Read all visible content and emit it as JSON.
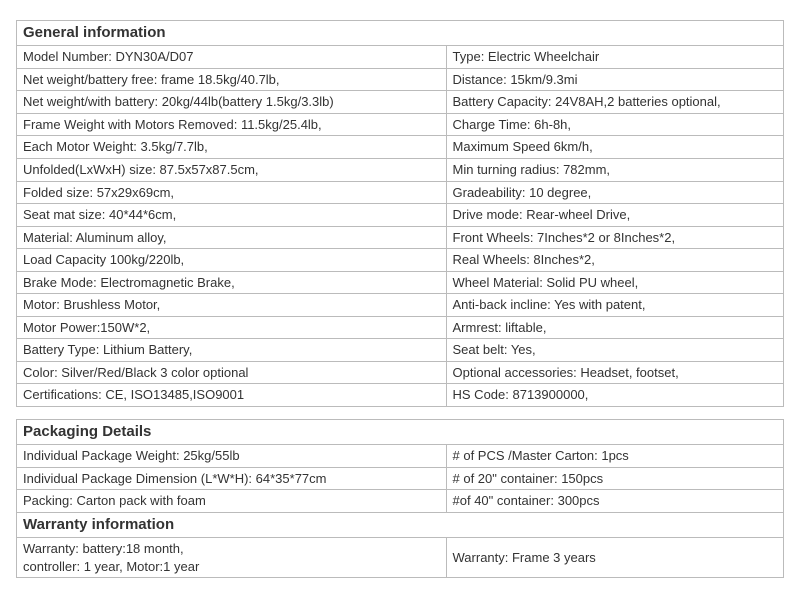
{
  "general": {
    "header": "General information",
    "rows": [
      [
        "Model Number: DYN30A/D07",
        "Type: Electric Wheelchair"
      ],
      [
        "Net weight/battery free: frame 18.5kg/40.7lb,",
        "Distance: 15km/9.3mi"
      ],
      [
        "Net weight/with battery: 20kg/44lb(battery 1.5kg/3.3lb)",
        "Battery Capacity: 24V8AH,2 batteries optional,"
      ],
      [
        "Frame Weight with Motors Removed: 11.5kg/25.4lb,",
        "Charge Time: 6h-8h,"
      ],
      [
        "Each Motor Weight: 3.5kg/7.7lb,",
        "Maximum Speed 6km/h,"
      ],
      [
        "Unfolded(LxWxH) size: 87.5x57x87.5cm,",
        "Min turning radius: 782mm,"
      ],
      [
        "Folded size: 57x29x69cm,",
        "Gradeability: 10 degree,"
      ],
      [
        "Seat mat size: 40*44*6cm,",
        "Drive mode: Rear-wheel Drive,"
      ],
      [
        "Material: Aluminum alloy,",
        "Front Wheels: 7Inches*2 or 8Inches*2,"
      ],
      [
        "Load Capacity 100kg/220lb,",
        "Real Wheels: 8Inches*2,"
      ],
      [
        "Brake Mode: Electromagnetic Brake,",
        "Wheel Material: Solid PU wheel,"
      ],
      [
        "Motor: Brushless Motor,",
        "Anti-back incline: Yes with patent,"
      ],
      [
        "Motor Power:150W*2,",
        "Armrest: liftable,"
      ],
      [
        "Battery Type: Lithium Battery,",
        "Seat belt: Yes,"
      ],
      [
        "Color: Silver/Red/Black 3 color optional",
        "Optional accessories: Headset, footset,"
      ],
      [
        "Certifications: CE, ISO13485,ISO9001",
        "HS Code: 8713900000,"
      ]
    ]
  },
  "packaging": {
    "header": "Packaging Details",
    "rows": [
      [
        "Individual Package Weight: 25kg/55lb",
        "# of PCS /Master Carton:  1pcs"
      ],
      [
        "Individual Package Dimension (L*W*H): 64*35*77cm",
        "# of 20\" container: 150pcs"
      ],
      [
        "Packing: Carton pack with foam",
        "#of 40\" container: 300pcs"
      ]
    ]
  },
  "warranty": {
    "header": "Warranty information",
    "left": "Warranty: battery:18 month,\ncontroller: 1 year, Motor:1 year",
    "right": "Warranty: Frame 3 years"
  }
}
